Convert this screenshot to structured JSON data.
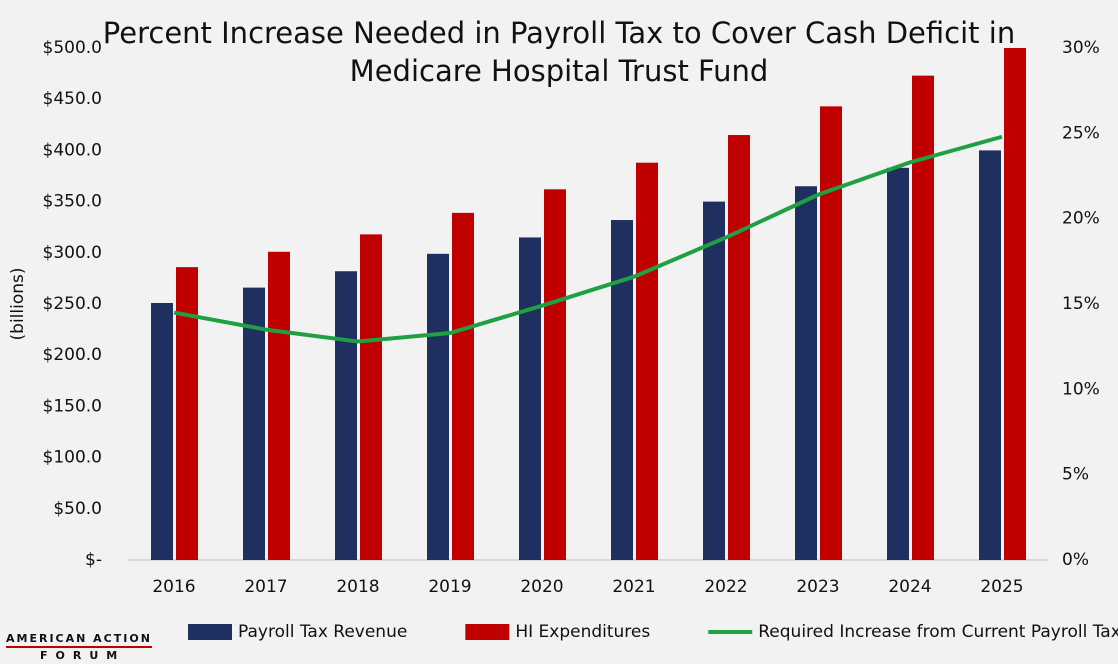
{
  "chart_data": {
    "type": "bar",
    "title": "Percent Increase Needed in Payroll Tax to Cover Cash Deficit in Medicare Hospital Trust Fund",
    "y_label": "(billions)",
    "categories": [
      "2016",
      "2017",
      "2018",
      "2019",
      "2020",
      "2021",
      "2022",
      "2023",
      "2024",
      "2025"
    ],
    "series": [
      {
        "name": "Payroll Tax Revenue",
        "color": "#1f2f5f",
        "values": [
          251,
          266,
          282,
          299,
          315,
          332,
          350,
          365,
          383,
          400
        ]
      },
      {
        "name": "HI Expenditures",
        "color": "#c00000",
        "values": [
          286,
          301,
          318,
          339,
          362,
          388,
          415,
          443,
          473,
          500
        ]
      },
      {
        "name": "Required Increase from Current Payroll Tax",
        "color": "#1ea043",
        "type": "line",
        "axis": "y2",
        "values": [
          14.5,
          13.5,
          12.8,
          13.3,
          14.9,
          16.6,
          18.9,
          21.4,
          23.3,
          24.8
        ]
      }
    ],
    "ylim": [
      0,
      500
    ],
    "yticks": [
      {
        "value": 0,
        "label": "$-"
      },
      {
        "value": 50,
        "label": "$50.0"
      },
      {
        "value": 100,
        "label": "$100.0"
      },
      {
        "value": 150,
        "label": "$150.0"
      },
      {
        "value": 200,
        "label": "$200.0"
      },
      {
        "value": 250,
        "label": "$250.0"
      },
      {
        "value": 300,
        "label": "$300.0"
      },
      {
        "value": 350,
        "label": "$350.0"
      },
      {
        "value": 400,
        "label": "$400.0"
      },
      {
        "value": 450,
        "label": "$450.0"
      },
      {
        "value": 500,
        "label": "$500.0"
      }
    ],
    "y2lim": [
      0,
      30
    ],
    "y2ticks": [
      {
        "value": 0,
        "label": "0%"
      },
      {
        "value": 5,
        "label": "5%"
      },
      {
        "value": 10,
        "label": "10%"
      },
      {
        "value": 15,
        "label": "15%"
      },
      {
        "value": 20,
        "label": "20%"
      },
      {
        "value": 25,
        "label": "25%"
      },
      {
        "value": 30,
        "label": "30%"
      }
    ],
    "grid": false,
    "legend": "bottom"
  },
  "logo": {
    "line1": "AMERICAN ACTION",
    "line2": "FORUM"
  }
}
